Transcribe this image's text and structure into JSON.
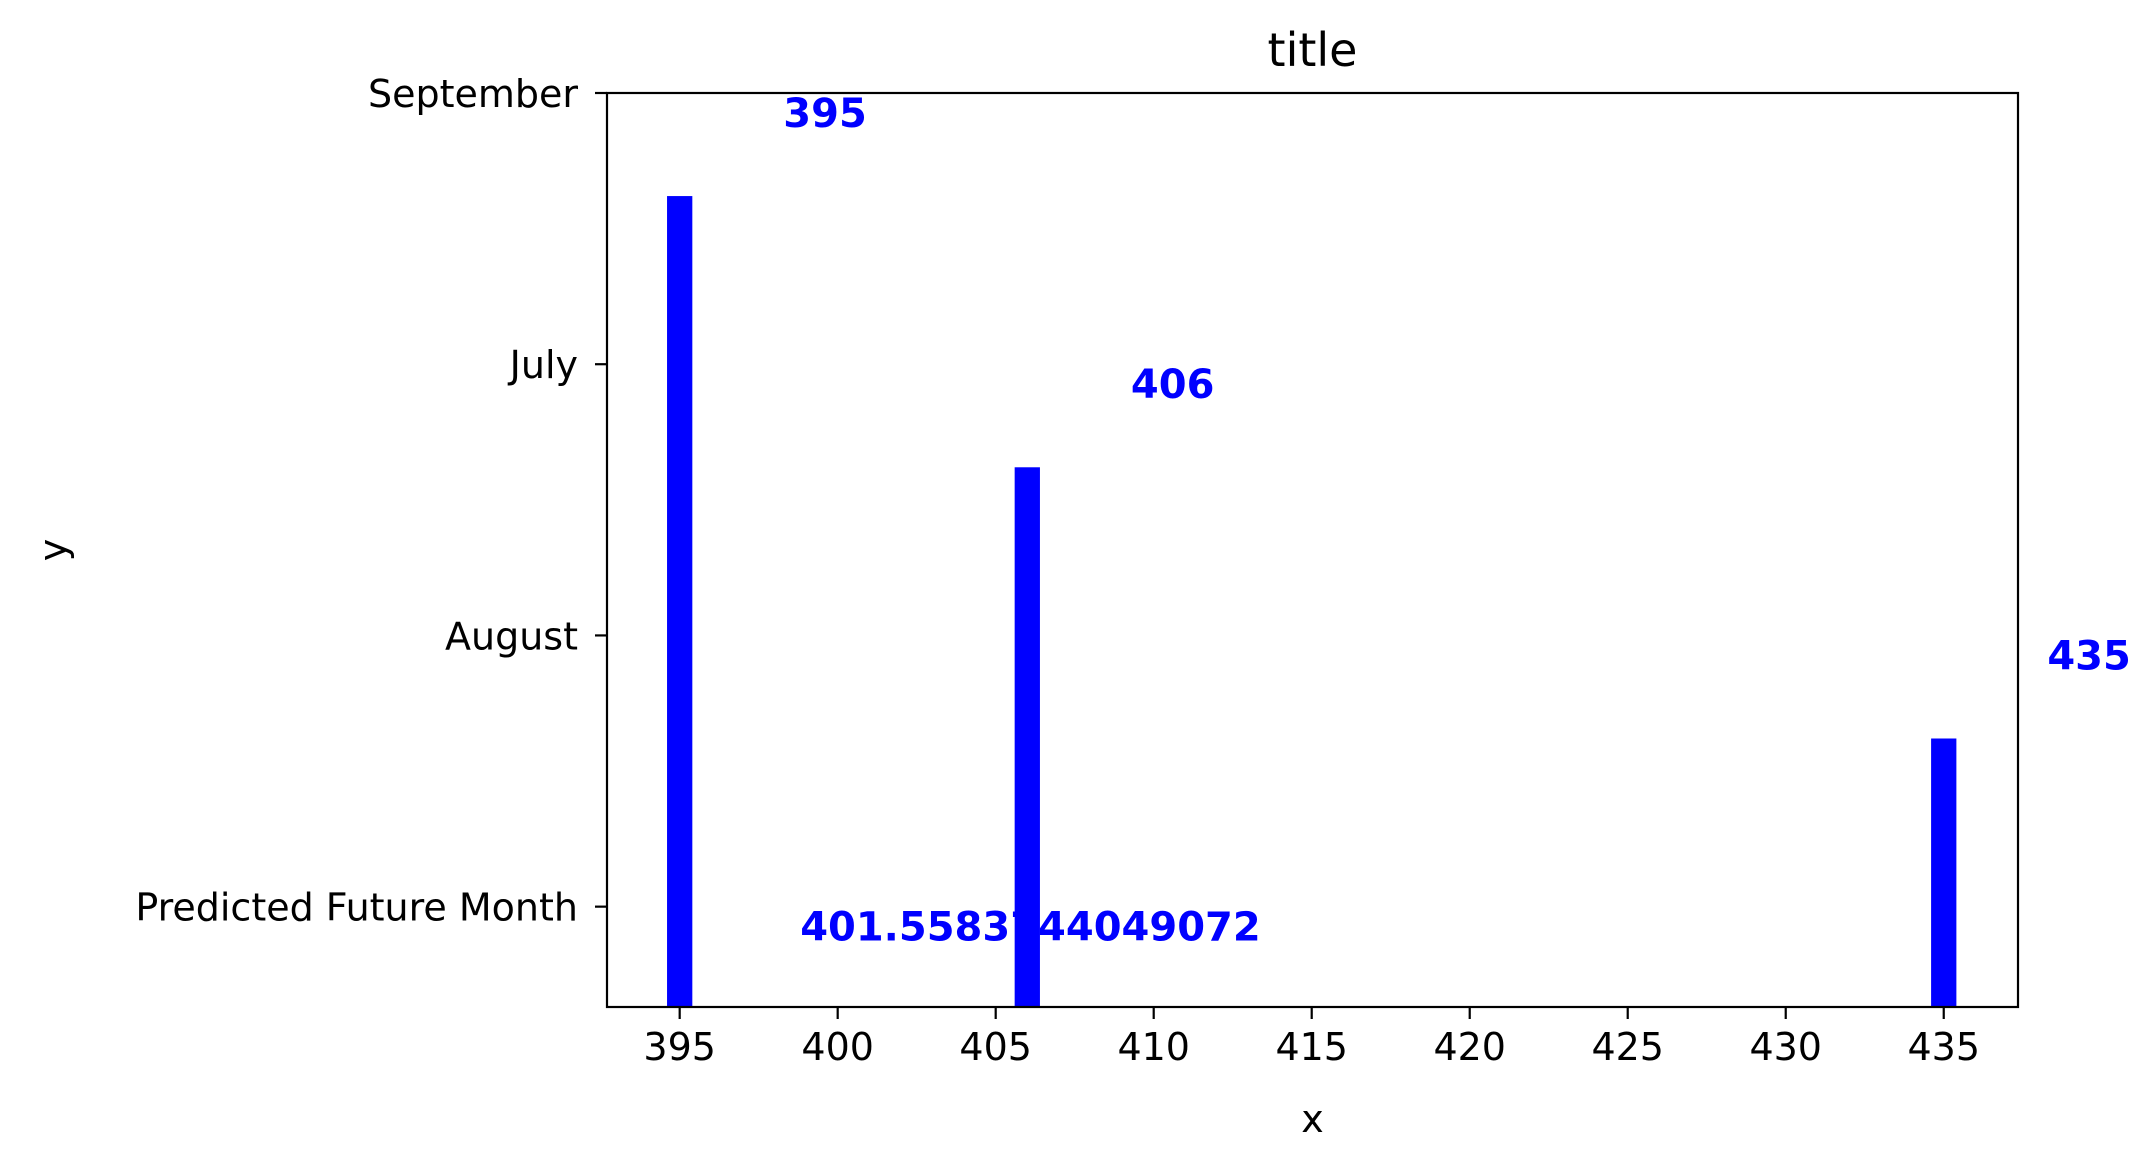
{
  "chart_data": {
    "type": "bar",
    "orientation": "vertical",
    "title": "title",
    "xlabel": "x",
    "ylabel": "y",
    "x_ticks": [
      395,
      400,
      405,
      410,
      415,
      420,
      425,
      430,
      435
    ],
    "xlim": [
      392.7,
      437.35
    ],
    "y_categories": [
      "Predicted Future Month",
      "August",
      "July",
      "September"
    ],
    "ylim": [
      -0.37,
      3
    ],
    "series": [
      {
        "color": "#0000ff",
        "points": [
          {
            "x": 395,
            "y": "July",
            "top": 2.62
          },
          {
            "x": 406,
            "y": "August",
            "top": 1.62
          },
          {
            "x": 435,
            "y": "Predicted Future Month",
            "top": 0.62
          }
        ]
      }
    ],
    "data_labels": [
      {
        "text": "395",
        "x": 399.6,
        "y": 2.93
      },
      {
        "text": "406",
        "x": 410.6,
        "y": 1.93
      },
      {
        "text": "435",
        "x": 439.6,
        "y": 0.93
      },
      {
        "text": "401.5583744049072",
        "x": 406.1,
        "y": -0.07
      }
    ],
    "grid": false,
    "legend": "none"
  }
}
